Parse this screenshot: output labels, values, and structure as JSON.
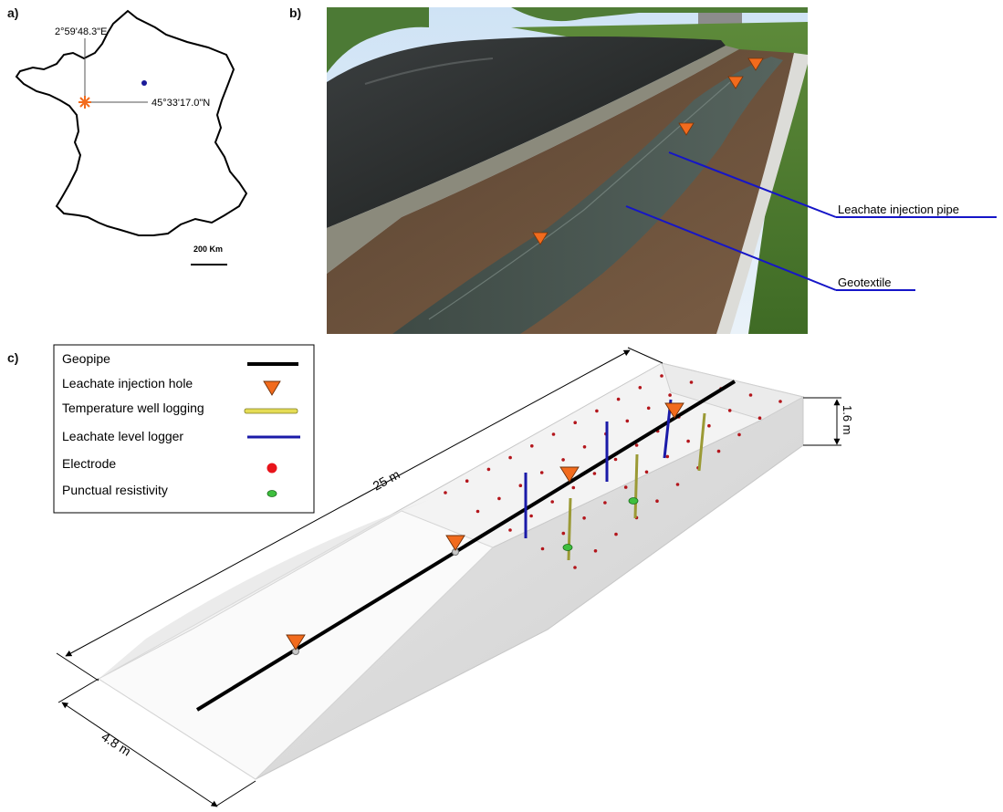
{
  "panels": {
    "a": {
      "label": "a)",
      "longitude": "2°59'48.3\"E",
      "latitude": "45°33'17.0\"N",
      "scale_bar": "200 Km"
    },
    "b": {
      "label": "b)",
      "callouts": [
        "Leachate injection pipe",
        "Geotextile"
      ]
    },
    "c": {
      "label": "c)",
      "legend": [
        {
          "label": "Geopipe",
          "symbol": "black-line",
          "color": "#000000"
        },
        {
          "label": "Leachate injection hole",
          "symbol": "orange-triangle",
          "color": "#f26b1d"
        },
        {
          "label": "Temperature well logging",
          "symbol": "yellow-bar",
          "color": "#d9d24a"
        },
        {
          "label": "Leachate level logger",
          "symbol": "blue-line",
          "color": "#1a1aa8"
        },
        {
          "label": "Electrode",
          "symbol": "red-dot",
          "color": "#e8141b"
        },
        {
          "label": "Punctual resistivity",
          "symbol": "green-ellipse",
          "color": "#3fbf3f"
        }
      ],
      "dimensions": {
        "length": "25 m",
        "width": "4.8 m",
        "depth": "1.6 m"
      }
    }
  },
  "colors": {
    "injection": "#f26b1d",
    "callout_line": "#1515c8",
    "electrode": "#b3151b",
    "logger": "#1a1aa8",
    "well": "#b9b53a",
    "resistivity": "#3fbf3f"
  }
}
